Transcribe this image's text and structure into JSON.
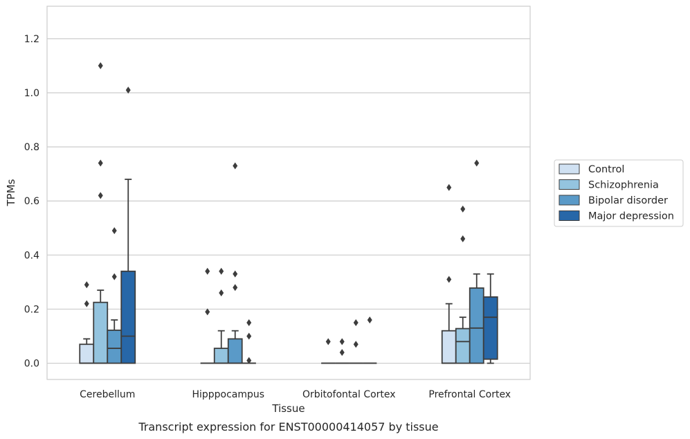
{
  "chart_data": {
    "type": "box",
    "title": "",
    "caption": "Transcript expression for ENST00000414057 by tissue",
    "xlabel": "Tissue",
    "ylabel": "TPMs",
    "ylim": [
      -0.06,
      1.32
    ],
    "yticks": [
      0.0,
      0.2,
      0.4,
      0.6,
      0.8,
      1.0,
      1.2
    ],
    "ytick_labels": [
      "0.0",
      "0.2",
      "0.4",
      "0.6",
      "0.8",
      "1.0",
      "1.2"
    ],
    "grid": "horizontal",
    "legend_position": "right",
    "categories": [
      "Cerebellum",
      "Hipppocampus",
      "Orbitofontal Cortex",
      "Prefrontal Cortex"
    ],
    "series": [
      {
        "name": "Control",
        "color": "#d0e1f2",
        "boxes": [
          {
            "q1": 0.0,
            "median": 0.0,
            "q3": 0.07,
            "whislo": 0.0,
            "whishi": 0.09,
            "fliers": [
              0.22,
              0.29
            ]
          },
          {
            "q1": 0.0,
            "median": 0.0,
            "q3": 0.0,
            "whislo": 0.0,
            "whishi": 0.0,
            "fliers": [
              0.19,
              0.34
            ]
          },
          {
            "q1": 0.0,
            "median": 0.0,
            "q3": 0.0,
            "whislo": 0.0,
            "whishi": 0.0,
            "fliers": [
              0.08
            ]
          },
          {
            "q1": 0.0,
            "median": 0.0,
            "q3": 0.12,
            "whislo": 0.0,
            "whishi": 0.22,
            "fliers": [
              0.31,
              0.65
            ]
          }
        ]
      },
      {
        "name": "Schizophrenia",
        "color": "#94c4df",
        "boxes": [
          {
            "q1": 0.0,
            "median": 0.0,
            "q3": 0.225,
            "whislo": 0.0,
            "whishi": 0.27,
            "fliers": [
              0.74,
              1.1,
              0.62
            ]
          },
          {
            "q1": 0.0,
            "median": 0.0,
            "q3": 0.055,
            "whislo": 0.0,
            "whishi": 0.12,
            "fliers": [
              0.26,
              0.34
            ]
          },
          {
            "q1": 0.0,
            "median": 0.0,
            "q3": 0.0,
            "whislo": 0.0,
            "whishi": 0.0,
            "fliers": [
              0.04,
              0.08
            ]
          },
          {
            "q1": 0.0,
            "median": 0.08,
            "q3": 0.128,
            "whislo": 0.0,
            "whishi": 0.17,
            "fliers": [
              0.46,
              0.57
            ]
          }
        ]
      },
      {
        "name": "Bipolar disorder",
        "color": "#5a9ac8",
        "boxes": [
          {
            "q1": 0.0,
            "median": 0.055,
            "q3": 0.122,
            "whislo": 0.0,
            "whishi": 0.16,
            "fliers": [
              0.49,
              0.32
            ]
          },
          {
            "q1": 0.0,
            "median": 0.0,
            "q3": 0.09,
            "whislo": 0.0,
            "whishi": 0.12,
            "fliers": [
              0.28,
              0.33,
              0.73
            ]
          },
          {
            "q1": 0.0,
            "median": 0.0,
            "q3": 0.0,
            "whislo": 0.0,
            "whishi": 0.0,
            "fliers": [
              0.07,
              0.15
            ]
          },
          {
            "q1": 0.0,
            "median": 0.13,
            "q3": 0.278,
            "whislo": 0.0,
            "whishi": 0.33,
            "fliers": [
              0.74
            ]
          }
        ]
      },
      {
        "name": "Major depression",
        "color": "#2767a8",
        "boxes": [
          {
            "q1": 0.0,
            "median": 0.1,
            "q3": 0.34,
            "whislo": 0.0,
            "whishi": 0.68,
            "fliers": [
              1.01
            ]
          },
          {
            "q1": 0.0,
            "median": 0.0,
            "q3": 0.0,
            "whislo": 0.0,
            "whishi": 0.0,
            "fliers": [
              0.01,
              0.1,
              0.15
            ]
          },
          {
            "q1": 0.0,
            "median": 0.0,
            "q3": 0.0,
            "whislo": 0.0,
            "whishi": 0.0,
            "fliers": [
              0.16
            ]
          },
          {
            "q1": 0.015,
            "median": 0.17,
            "q3": 0.245,
            "whislo": 0.0,
            "whishi": 0.33,
            "fliers": []
          }
        ]
      }
    ]
  }
}
